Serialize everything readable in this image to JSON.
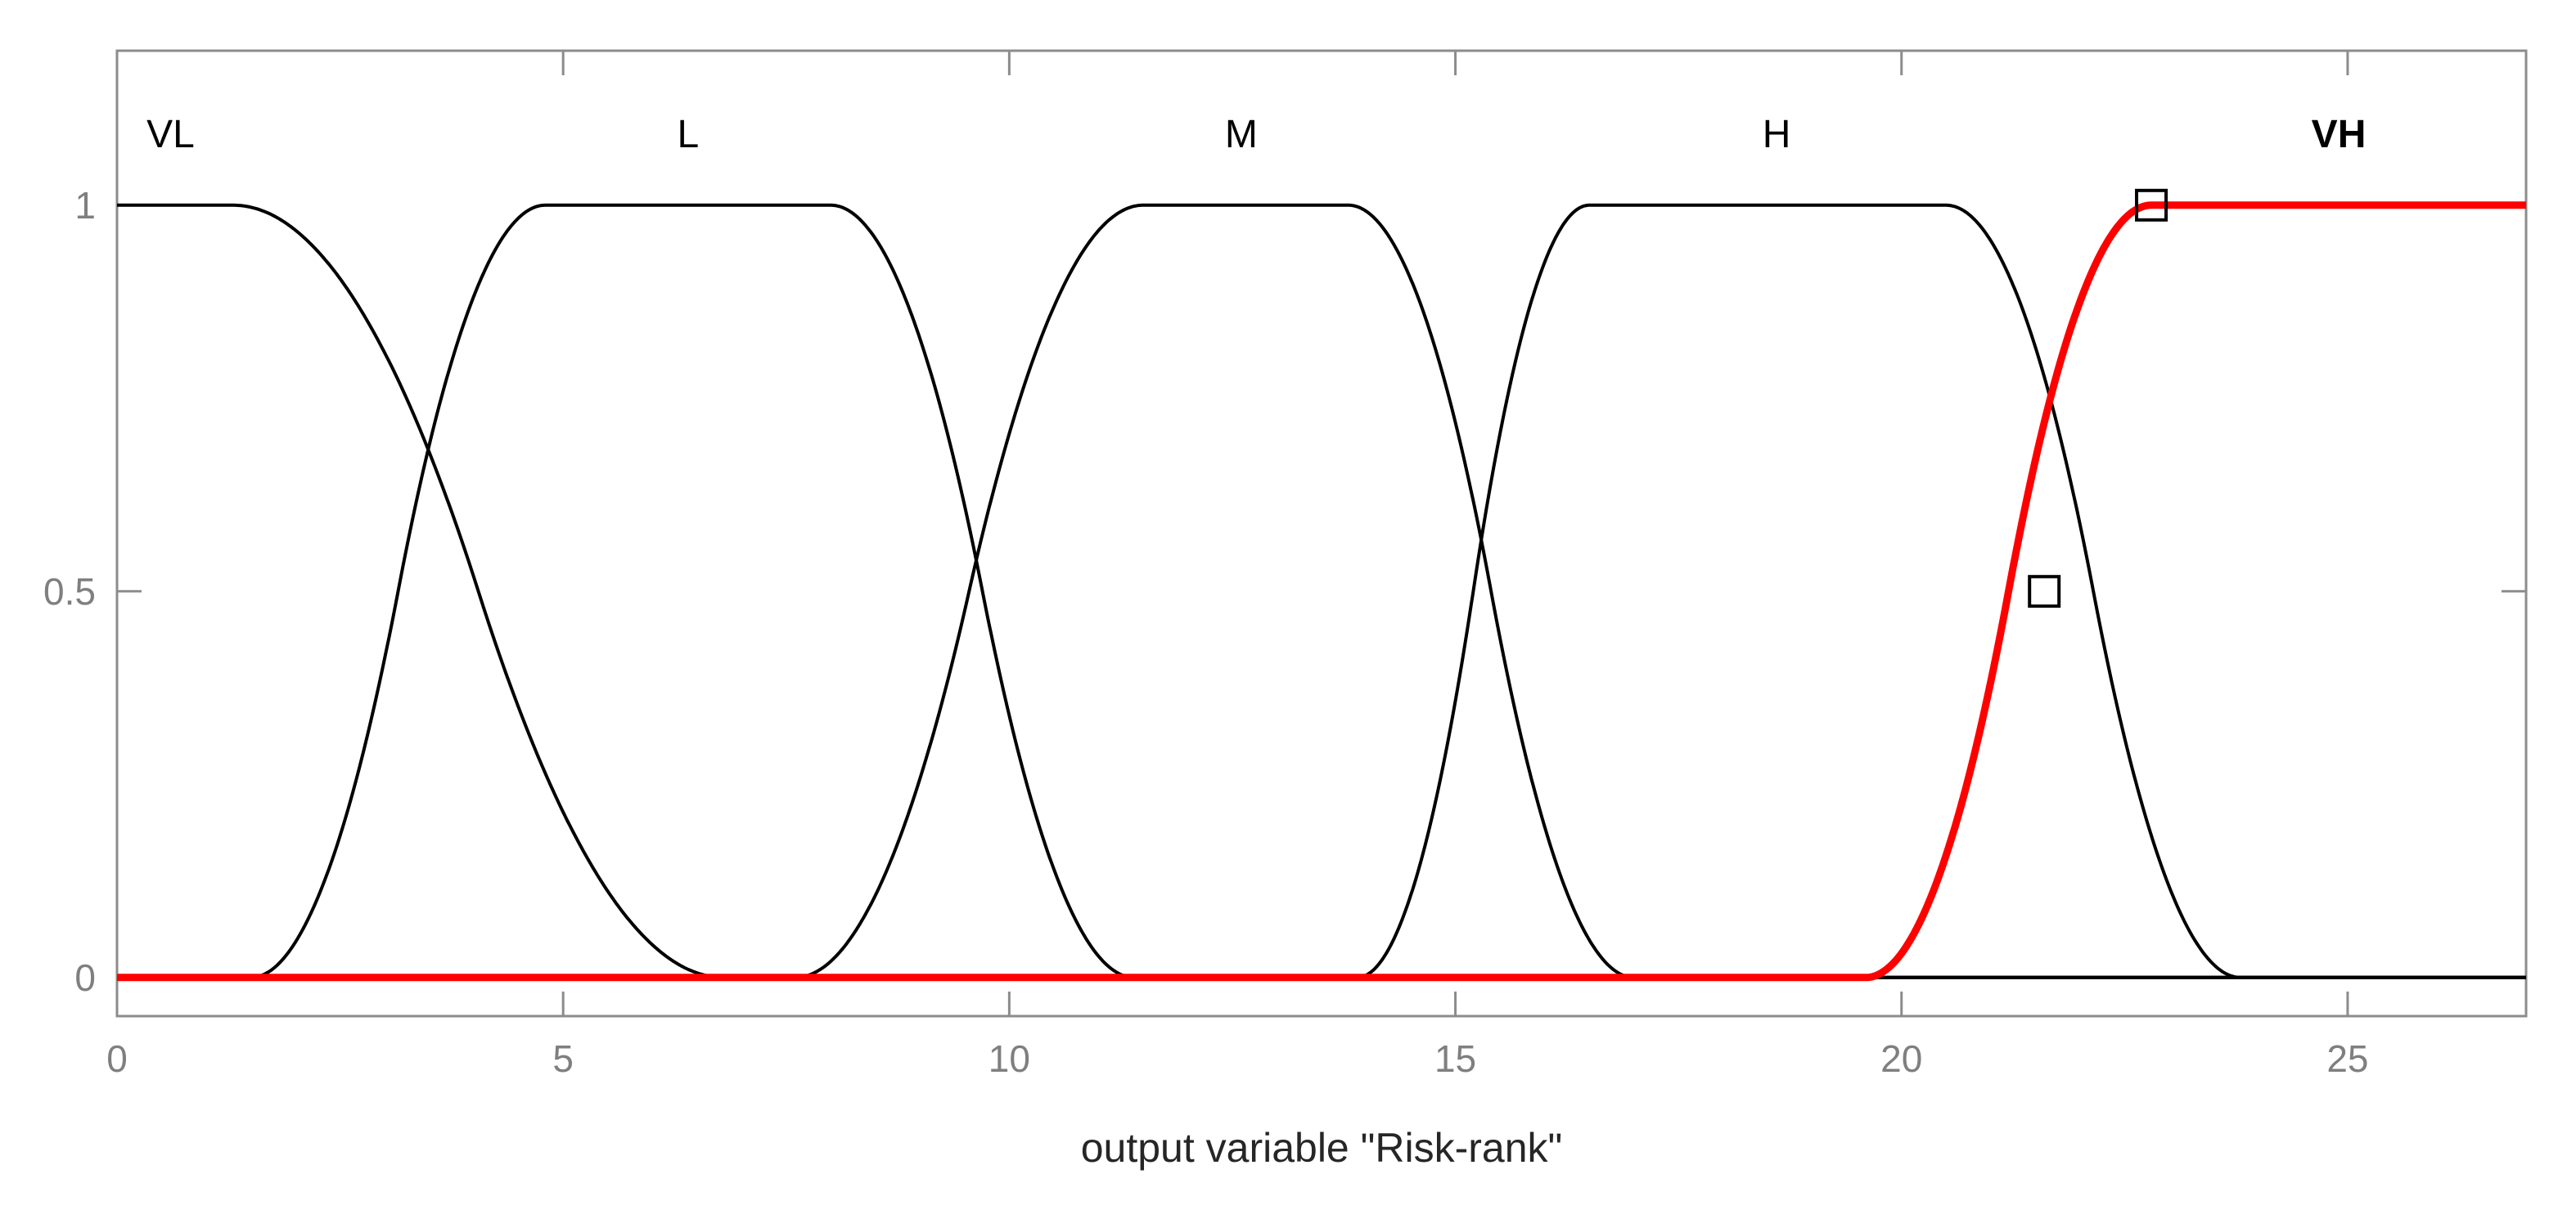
{
  "chart_data": {
    "type": "line",
    "title": "",
    "xlabel": "output variable \"Risk-rank\"",
    "ylabel": "",
    "xlim": [
      0,
      27
    ],
    "ylim": [
      -0.05,
      1.2
    ],
    "xticks": [
      0,
      5,
      10,
      15,
      20,
      25
    ],
    "xtick_labels": [
      "0",
      "5",
      "10",
      "15",
      "20",
      "25"
    ],
    "yticks": [
      0,
      0.5,
      1
    ],
    "ytick_labels": [
      "0",
      "0.5",
      "1"
    ],
    "grid": false,
    "series": [
      {
        "name": "VL",
        "shape": "pi",
        "color": "#000000",
        "highlighted": false,
        "params": [
          -10,
          -10,
          1.3,
          6.8
        ],
        "label_x": 0.6
      },
      {
        "name": "L",
        "shape": "pi",
        "color": "#000000",
        "highlighted": false,
        "params": [
          1.5,
          4.8,
          8.0,
          11.4
        ],
        "label_x": 6.4
      },
      {
        "name": "M",
        "shape": "pi",
        "color": "#000000",
        "highlighted": false,
        "params": [
          7.6,
          11.5,
          13.8,
          17.0
        ],
        "label_x": 12.6
      },
      {
        "name": "H",
        "shape": "pi",
        "color": "#000000",
        "highlighted": false,
        "params": [
          13.9,
          16.5,
          20.5,
          23.8
        ],
        "label_x": 18.6
      },
      {
        "name": "VH",
        "shape": "s",
        "color": "#ff0000",
        "highlighted": true,
        "params": [
          19.6,
          22.8
        ],
        "label_x": 24.9
      }
    ],
    "markers": [
      {
        "x": 21.6,
        "y": 0.5
      },
      {
        "x": 22.8,
        "y": 1
      }
    ]
  }
}
